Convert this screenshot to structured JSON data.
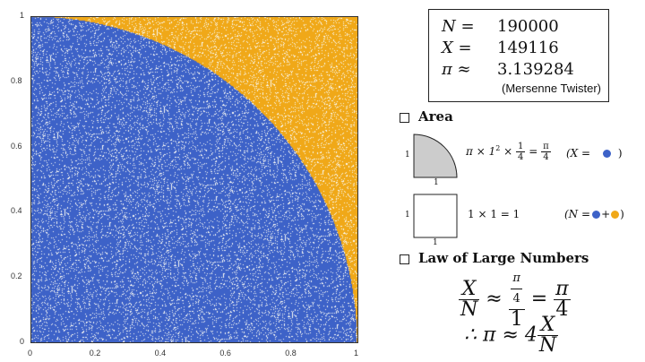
{
  "plot": {
    "x_ticks": [
      "0",
      "0.2",
      "0.4",
      "0.6",
      "0.8",
      "1"
    ],
    "y_ticks": [
      "0",
      "0.2",
      "0.4",
      "0.6",
      "0.8",
      "1"
    ],
    "inside_color": "#3d62c8",
    "outside_color": "#f0a818"
  },
  "stats": {
    "n_label": "N =",
    "n_value": "190000",
    "x_label": "X =",
    "x_value": "149116",
    "pi_label": "π ≈",
    "pi_value": "3.139284",
    "rng": "(Mersenne Twister)"
  },
  "area": {
    "title": "Area",
    "quarter_side_left": "1",
    "quarter_side_bottom": "1",
    "quarter_formula_prefix": "π × 1",
    "quarter_formula_exp": "2",
    "quarter_formula_mid": "×",
    "quarter_frac_num": "1",
    "quarter_frac_den": "4",
    "quarter_eq": "=",
    "quarter_result_num": "π",
    "quarter_result_den": "4",
    "quarter_legend": "(X =",
    "quarter_legend_close": ")",
    "square_side_left": "1",
    "square_side_bottom": "1",
    "square_formula": "1 × 1 = 1",
    "square_legend": "(N =",
    "square_legend_plus": "+",
    "square_legend_close": ")"
  },
  "law": {
    "title": "Law of Large Numbers",
    "f1_num": "X",
    "f1_den": "N",
    "approx": "≈",
    "f2_num_num": "π",
    "f2_num_den": "4",
    "f2_den": "1",
    "eq": "=",
    "f3_num": "π",
    "f3_den": "4",
    "therefore": "∴ π ≈ 4",
    "f4_num": "X",
    "f4_den": "N"
  }
}
